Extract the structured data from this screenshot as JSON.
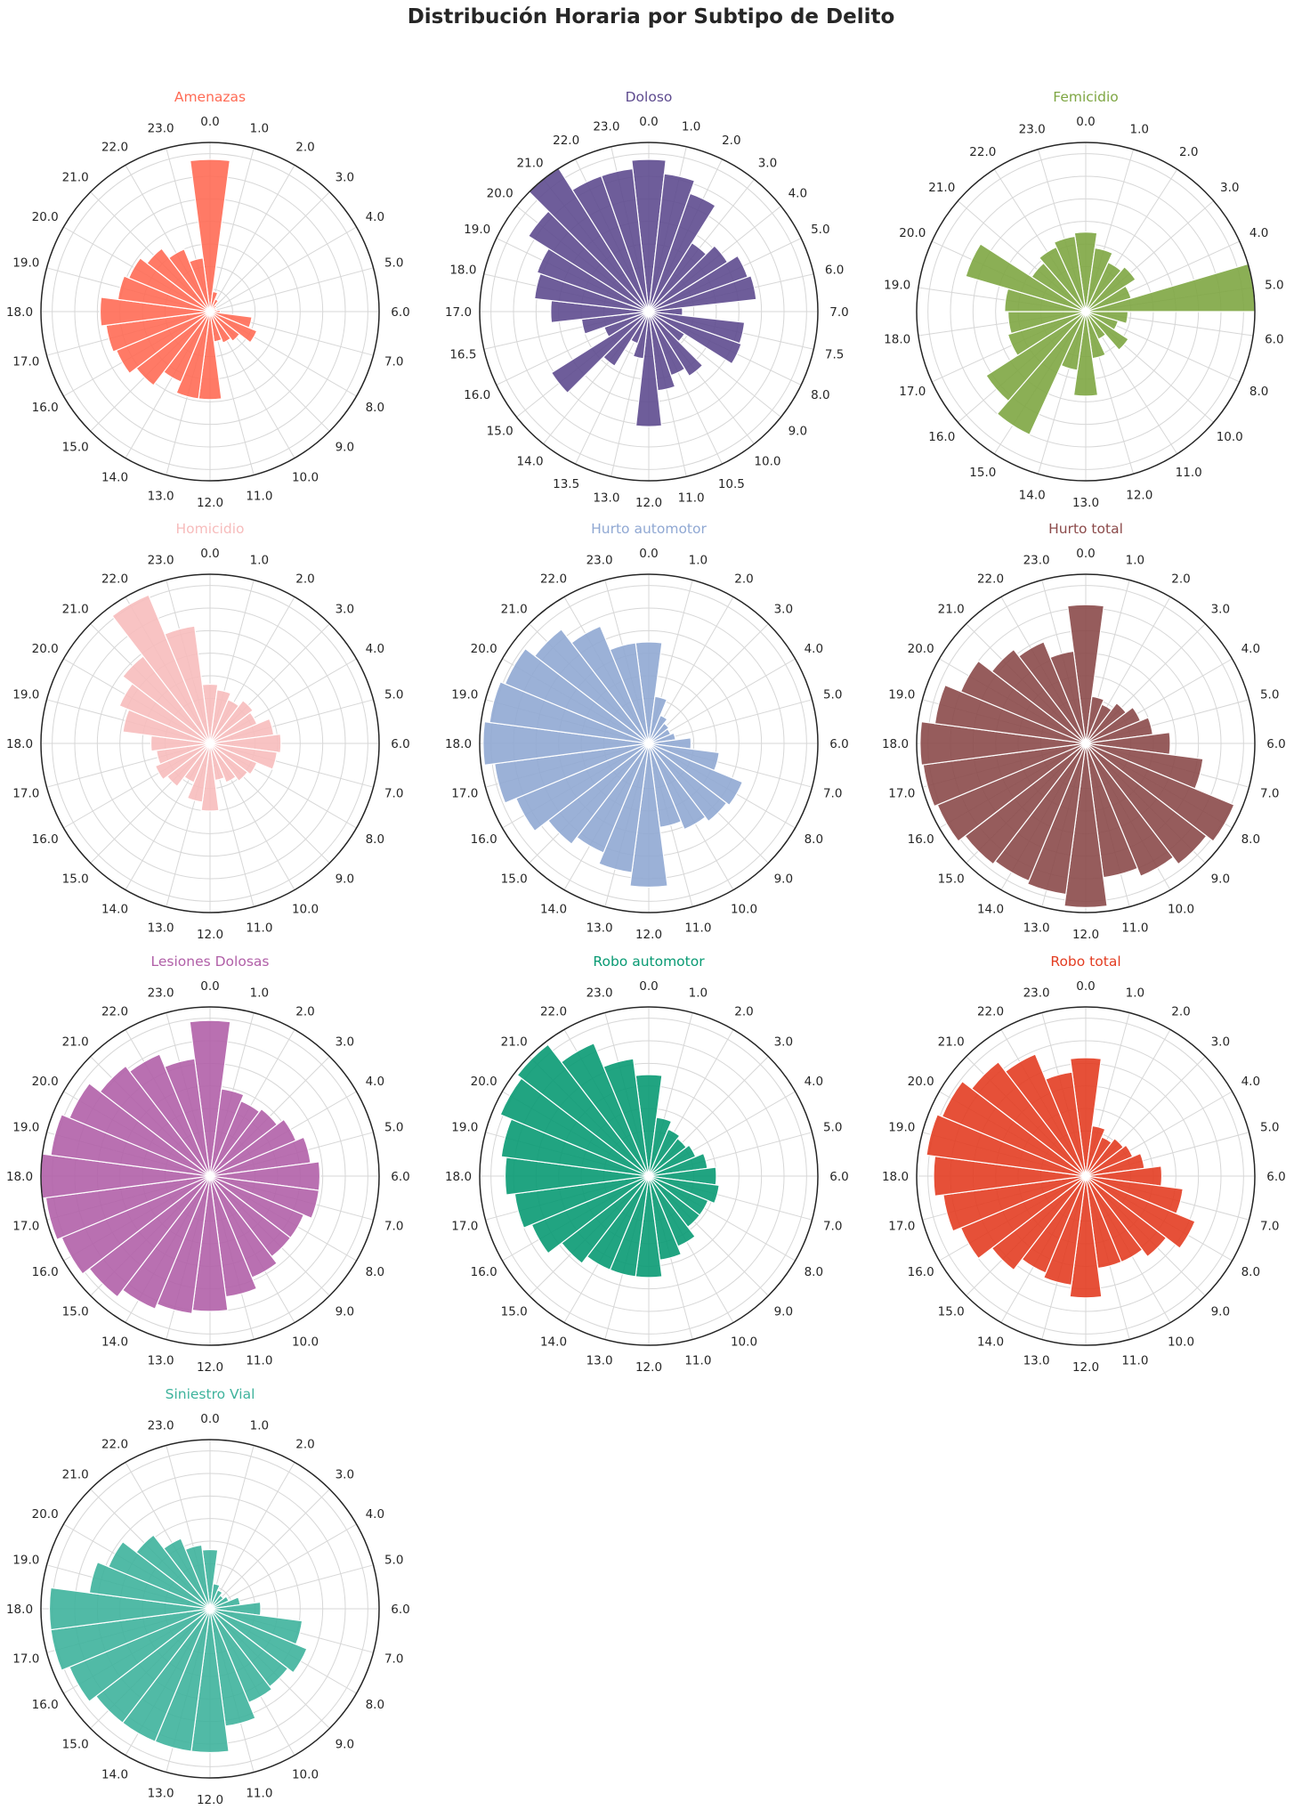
{
  "figure": {
    "title": "Distribución Horaria por Subtipo de Delito"
  },
  "chart_data": [
    {
      "type": "polar-bar",
      "title": "Amenazas",
      "color": "#ff6b55",
      "rmax": 1.0,
      "grid": true,
      "tick_labels": [
        "0.0",
        "1.0",
        "2.0",
        "3.0",
        "4.0",
        "5.0",
        "6.0",
        "7.0",
        "8.0",
        "9.0",
        "10.0",
        "11.0",
        "12.0",
        "13.0",
        "14.0",
        "15.0",
        "16.0",
        "17.0",
        "18.0",
        "19.0",
        "20.0",
        "21.0",
        "22.0",
        "23.0"
      ],
      "x": [
        0,
        1,
        2,
        3,
        4,
        5,
        6,
        7,
        8,
        9,
        10,
        11,
        12,
        13,
        14,
        15,
        16,
        17,
        18,
        19,
        20,
        21,
        22,
        23
      ],
      "values": [
        0.9,
        0.12,
        0.08,
        0.05,
        0.04,
        0.04,
        0.06,
        0.25,
        0.3,
        0.22,
        0.2,
        0.18,
        0.52,
        0.52,
        0.45,
        0.55,
        0.6,
        0.62,
        0.65,
        0.55,
        0.52,
        0.47,
        0.4,
        0.32
      ]
    },
    {
      "type": "polar-bar",
      "title": "Doloso",
      "color": "#5e4b8f",
      "rmax": 1.0,
      "grid": true,
      "tick_labels": [
        "0.0",
        "1.0",
        "2.0",
        "3.0",
        "4.0",
        "5.0",
        "6.0",
        "7.0",
        "7.5",
        "8.0",
        "9.0",
        "10.0",
        "10.5",
        "11.0",
        "12.0",
        "13.0",
        "13.5",
        "14.0",
        "15.0",
        "16.0",
        "16.5",
        "17.0",
        "18.0",
        "19.0",
        "20.0",
        "21.0",
        "22.0",
        "23.0"
      ],
      "x": [
        0,
        1,
        2,
        3,
        4,
        5,
        6,
        7,
        8,
        9,
        10,
        11,
        12,
        13,
        14,
        15,
        16,
        17,
        18,
        19,
        20,
        21,
        22,
        23,
        24,
        25,
        26,
        27
      ],
      "values": [
        0.9,
        0.82,
        0.74,
        0.48,
        0.55,
        0.62,
        0.64,
        0.2,
        0.57,
        0.58,
        0.25,
        0.45,
        0.4,
        0.47,
        0.68,
        0.28,
        0.2,
        0.38,
        0.68,
        0.28,
        0.4,
        0.58,
        0.68,
        0.7,
        0.84,
        1.0,
        0.85,
        0.85
      ]
    },
    {
      "type": "polar-bar",
      "title": "Femicidio",
      "color": "#7ea643",
      "rmax": 1.0,
      "grid": true,
      "tick_labels": [
        "0.0",
        "1.0",
        "2.0",
        "3.0",
        "4.0",
        "5.0",
        "6.0",
        "8.0",
        "10.0",
        "11.0",
        "12.0",
        "13.0",
        "14.0",
        "15.0",
        "16.0",
        "17.0",
        "18.0",
        "19.0",
        "20.0",
        "21.0",
        "22.0",
        "23.0"
      ],
      "x": [
        0,
        1,
        2,
        3,
        4,
        5,
        6,
        7,
        8,
        9,
        10,
        11,
        12,
        13,
        14,
        15,
        16,
        17,
        18,
        19,
        20,
        21
      ],
      "values": [
        0.47,
        0.38,
        0.32,
        0.35,
        0.28,
        1.0,
        0.25,
        0.2,
        0.3,
        0.18,
        0.28,
        0.5,
        0.35,
        0.8,
        0.7,
        0.48,
        0.46,
        0.48,
        0.74,
        0.38,
        0.42,
        0.45
      ]
    },
    {
      "type": "polar-bar",
      "title": "Homicidio",
      "color": "#f7bcbc",
      "rmax": 1.0,
      "grid": true,
      "tick_labels": [
        "0.0",
        "1.0",
        "2.0",
        "3.0",
        "4.0",
        "5.0",
        "6.0",
        "7.0",
        "8.0",
        "9.0",
        "10.0",
        "11.0",
        "12.0",
        "13.0",
        "14.0",
        "15.0",
        "16.0",
        "17.0",
        "18.0",
        "19.0",
        "20.0",
        "21.0",
        "22.0",
        "23.0"
      ],
      "x": [
        0,
        1,
        2,
        3,
        4,
        5,
        6,
        7,
        8,
        9,
        10,
        11,
        12,
        13,
        14,
        15,
        16,
        17,
        18,
        19,
        20,
        21,
        22,
        23
      ],
      "values": [
        0.35,
        0.32,
        0.28,
        0.32,
        0.3,
        0.38,
        0.42,
        0.4,
        0.3,
        0.28,
        0.25,
        0.22,
        0.4,
        0.35,
        0.25,
        0.32,
        0.35,
        0.32,
        0.35,
        0.52,
        0.58,
        0.65,
        0.95,
        0.7
      ]
    },
    {
      "type": "polar-bar",
      "title": "Hurto automotor",
      "color": "#90a8d3",
      "rmax": 1.0,
      "grid": true,
      "tick_labels": [
        "0.0",
        "1.0",
        "2.0",
        "3.0",
        "4.0",
        "5.0",
        "6.0",
        "7.0",
        "8.0",
        "9.0",
        "10.0",
        "11.0",
        "12.0",
        "13.0",
        "14.0",
        "15.0",
        "16.0",
        "17.0",
        "18.0",
        "19.0",
        "20.0",
        "21.0",
        "22.0",
        "23.0"
      ],
      "x": [
        0,
        1,
        2,
        3,
        4,
        5,
        6,
        7,
        8,
        9,
        10,
        11,
        12,
        13,
        14,
        15,
        16,
        17,
        18,
        19,
        20,
        21,
        22,
        23
      ],
      "values": [
        0.6,
        0.28,
        0.18,
        0.15,
        0.14,
        0.16,
        0.25,
        0.42,
        0.6,
        0.58,
        0.55,
        0.5,
        0.85,
        0.77,
        0.7,
        0.75,
        0.85,
        0.92,
        0.98,
        0.95,
        0.92,
        0.85,
        0.75,
        0.6
      ]
    },
    {
      "type": "polar-bar",
      "title": "Hurto total",
      "color": "#8b4a4a",
      "rmax": 1.0,
      "grid": true,
      "tick_labels": [
        "0.0",
        "1.0",
        "2.0",
        "3.0",
        "4.0",
        "5.0",
        "6.0",
        "7.0",
        "8.0",
        "9.0",
        "10.0",
        "11.0",
        "12.0",
        "13.0",
        "14.0",
        "15.0",
        "16.0",
        "17.0",
        "18.0",
        "19.0",
        "20.0",
        "21.0",
        "22.0",
        "23.0"
      ],
      "x": [
        0,
        1,
        2,
        3,
        4,
        5,
        6,
        7,
        8,
        9,
        10,
        11,
        12,
        13,
        14,
        15,
        16,
        17,
        18,
        19,
        20,
        21,
        22,
        23
      ],
      "values": [
        0.82,
        0.28,
        0.25,
        0.3,
        0.35,
        0.4,
        0.5,
        0.7,
        0.95,
        0.9,
        0.85,
        0.8,
        0.97,
        0.9,
        0.88,
        0.9,
        0.95,
        0.97,
        0.98,
        0.9,
        0.8,
        0.7,
        0.65,
        0.55
      ]
    },
    {
      "type": "polar-bar",
      "title": "Lesiones Dolosas",
      "color": "#b160a8",
      "rmax": 1.0,
      "grid": true,
      "tick_labels": [
        "0.0",
        "1.0",
        "2.0",
        "3.0",
        "4.0",
        "5.0",
        "6.0",
        "7.0",
        "8.0",
        "9.0",
        "10.0",
        "11.0",
        "12.0",
        "13.0",
        "14.0",
        "15.0",
        "16.0",
        "17.0",
        "18.0",
        "19.0",
        "20.0",
        "21.0",
        "22.0",
        "23.0"
      ],
      "x": [
        0,
        1,
        2,
        3,
        4,
        5,
        6,
        7,
        8,
        9,
        10,
        11,
        12,
        13,
        14,
        15,
        16,
        17,
        18,
        19,
        20,
        21,
        22,
        23
      ],
      "values": [
        0.92,
        0.52,
        0.48,
        0.5,
        0.55,
        0.6,
        0.65,
        0.65,
        0.6,
        0.6,
        0.65,
        0.72,
        0.8,
        0.82,
        0.85,
        0.9,
        0.95,
        0.98,
        1.0,
        0.95,
        0.9,
        0.82,
        0.78,
        0.7
      ]
    },
    {
      "type": "polar-bar",
      "title": "Robo automotor",
      "color": "#099a73",
      "rmax": 1.0,
      "grid": true,
      "tick_labels": [
        "0.0",
        "1.0",
        "2.0",
        "3.0",
        "4.0",
        "5.0",
        "6.0",
        "7.0",
        "8.0",
        "9.0",
        "10.0",
        "11.0",
        "12.0",
        "13.0",
        "14.0",
        "15.0",
        "16.0",
        "17.0",
        "18.0",
        "19.0",
        "20.0",
        "21.0",
        "22.0",
        "23.0"
      ],
      "x": [
        0,
        1,
        2,
        3,
        4,
        5,
        6,
        7,
        8,
        9,
        10,
        11,
        12,
        13,
        14,
        15,
        16,
        17,
        18,
        19,
        20,
        21,
        22,
        23
      ],
      "values": [
        0.6,
        0.35,
        0.3,
        0.28,
        0.3,
        0.35,
        0.4,
        0.42,
        0.38,
        0.38,
        0.45,
        0.5,
        0.6,
        0.6,
        0.6,
        0.65,
        0.75,
        0.8,
        0.85,
        0.88,
        0.95,
        0.98,
        0.85,
        0.7
      ]
    },
    {
      "type": "polar-bar",
      "title": "Robo total",
      "color": "#e33d22",
      "rmax": 1.0,
      "grid": true,
      "tick_labels": [
        "0.0",
        "1.0",
        "2.0",
        "3.0",
        "4.0",
        "5.0",
        "6.0",
        "7.0",
        "8.0",
        "9.0",
        "10.0",
        "11.0",
        "12.0",
        "13.0",
        "14.0",
        "15.0",
        "16.0",
        "17.0",
        "18.0",
        "19.0",
        "20.0",
        "21.0",
        "22.0",
        "23.0"
      ],
      "x": [
        0,
        1,
        2,
        3,
        4,
        5,
        6,
        7,
        8,
        9,
        10,
        11,
        12,
        13,
        14,
        15,
        16,
        17,
        18,
        19,
        20,
        21,
        22,
        23
      ],
      "values": [
        0.7,
        0.3,
        0.25,
        0.28,
        0.3,
        0.35,
        0.45,
        0.58,
        0.7,
        0.6,
        0.55,
        0.55,
        0.72,
        0.65,
        0.62,
        0.7,
        0.8,
        0.85,
        0.9,
        0.95,
        0.92,
        0.85,
        0.78,
        0.62
      ]
    },
    {
      "type": "polar-bar",
      "title": "Siniestro Vial",
      "color": "#3eb39c",
      "rmax": 1.0,
      "grid": true,
      "tick_labels": [
        "0.0",
        "1.0",
        "2.0",
        "3.0",
        "4.0",
        "5.0",
        "6.0",
        "7.0",
        "8.0",
        "9.0",
        "10.0",
        "11.0",
        "12.0",
        "13.0",
        "14.0",
        "15.0",
        "16.0",
        "17.0",
        "18.0",
        "19.0",
        "20.0",
        "21.0",
        "22.0",
        "23.0"
      ],
      "x": [
        0,
        1,
        2,
        3,
        4,
        5,
        6,
        7,
        8,
        9,
        10,
        11,
        12,
        13,
        14,
        15,
        16,
        17,
        18,
        19,
        20,
        21,
        22,
        23
      ],
      "values": [
        0.35,
        0.15,
        0.12,
        0.1,
        0.12,
        0.18,
        0.3,
        0.55,
        0.62,
        0.58,
        0.6,
        0.7,
        0.85,
        0.85,
        0.85,
        0.85,
        0.9,
        0.95,
        0.95,
        0.72,
        0.65,
        0.55,
        0.45,
        0.38
      ]
    }
  ]
}
